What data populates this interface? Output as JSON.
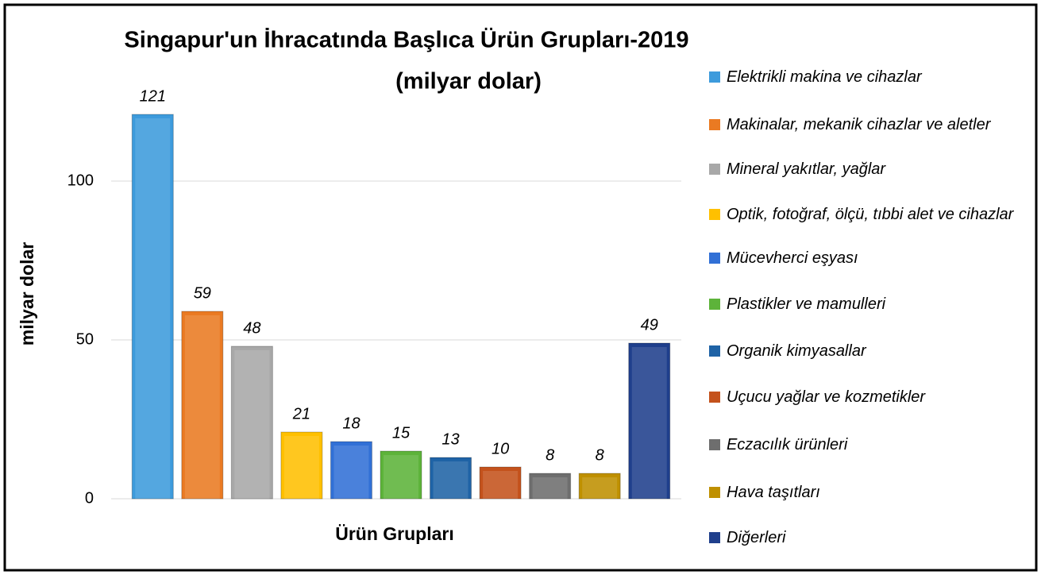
{
  "chart_data": {
    "type": "bar",
    "title": "Singapur'un İhracatında Başlıca Ürün Grupları-2019",
    "subtitle": "(milyar dolar)",
    "x_label": "Ürün Grupları",
    "y_label": "milyar dolar",
    "categories": [
      null
    ],
    "series": [
      {
        "name": "Elektrikli makina ve cihazlar",
        "color": "#3d9bdc",
        "values": [
          121
        ]
      },
      {
        "name": "Makinalar, mekanik cihazlar ve aletler",
        "color": "#ea7a22",
        "values": [
          59
        ]
      },
      {
        "name": "Mineral yakıtlar, yağlar",
        "color": "#a8a8a8",
        "values": [
          48
        ]
      },
      {
        "name": "Optik, fotoğraf, ölçü, tıbbi alet ve cihazlar",
        "color": "#ffc000",
        "values": [
          21
        ]
      },
      {
        "name": "Mücevherci eşyası",
        "color": "#3170d6",
        "values": [
          18
        ]
      },
      {
        "name": "Plastikler ve mamulleri",
        "color": "#5db33a",
        "values": [
          15
        ]
      },
      {
        "name": "Organik kimyasallar",
        "color": "#1f63a6",
        "values": [
          13
        ]
      },
      {
        "name": "Uçucu yağlar ve kozmetikler",
        "color": "#c4521c",
        "values": [
          10
        ]
      },
      {
        "name": "Eczacılık ürünleri",
        "color": "#6e6e6e",
        "values": [
          8
        ]
      },
      {
        "name": "Hava taşıtları",
        "color": "#bf9000",
        "values": [
          8
        ]
      },
      {
        "name": "Diğerleri",
        "color": "#1f3f8c",
        "values": [
          49
        ]
      }
    ],
    "ylim": [
      0,
      125
    ],
    "yticks": [
      0,
      50,
      100
    ],
    "grid": true,
    "legend": "right"
  }
}
